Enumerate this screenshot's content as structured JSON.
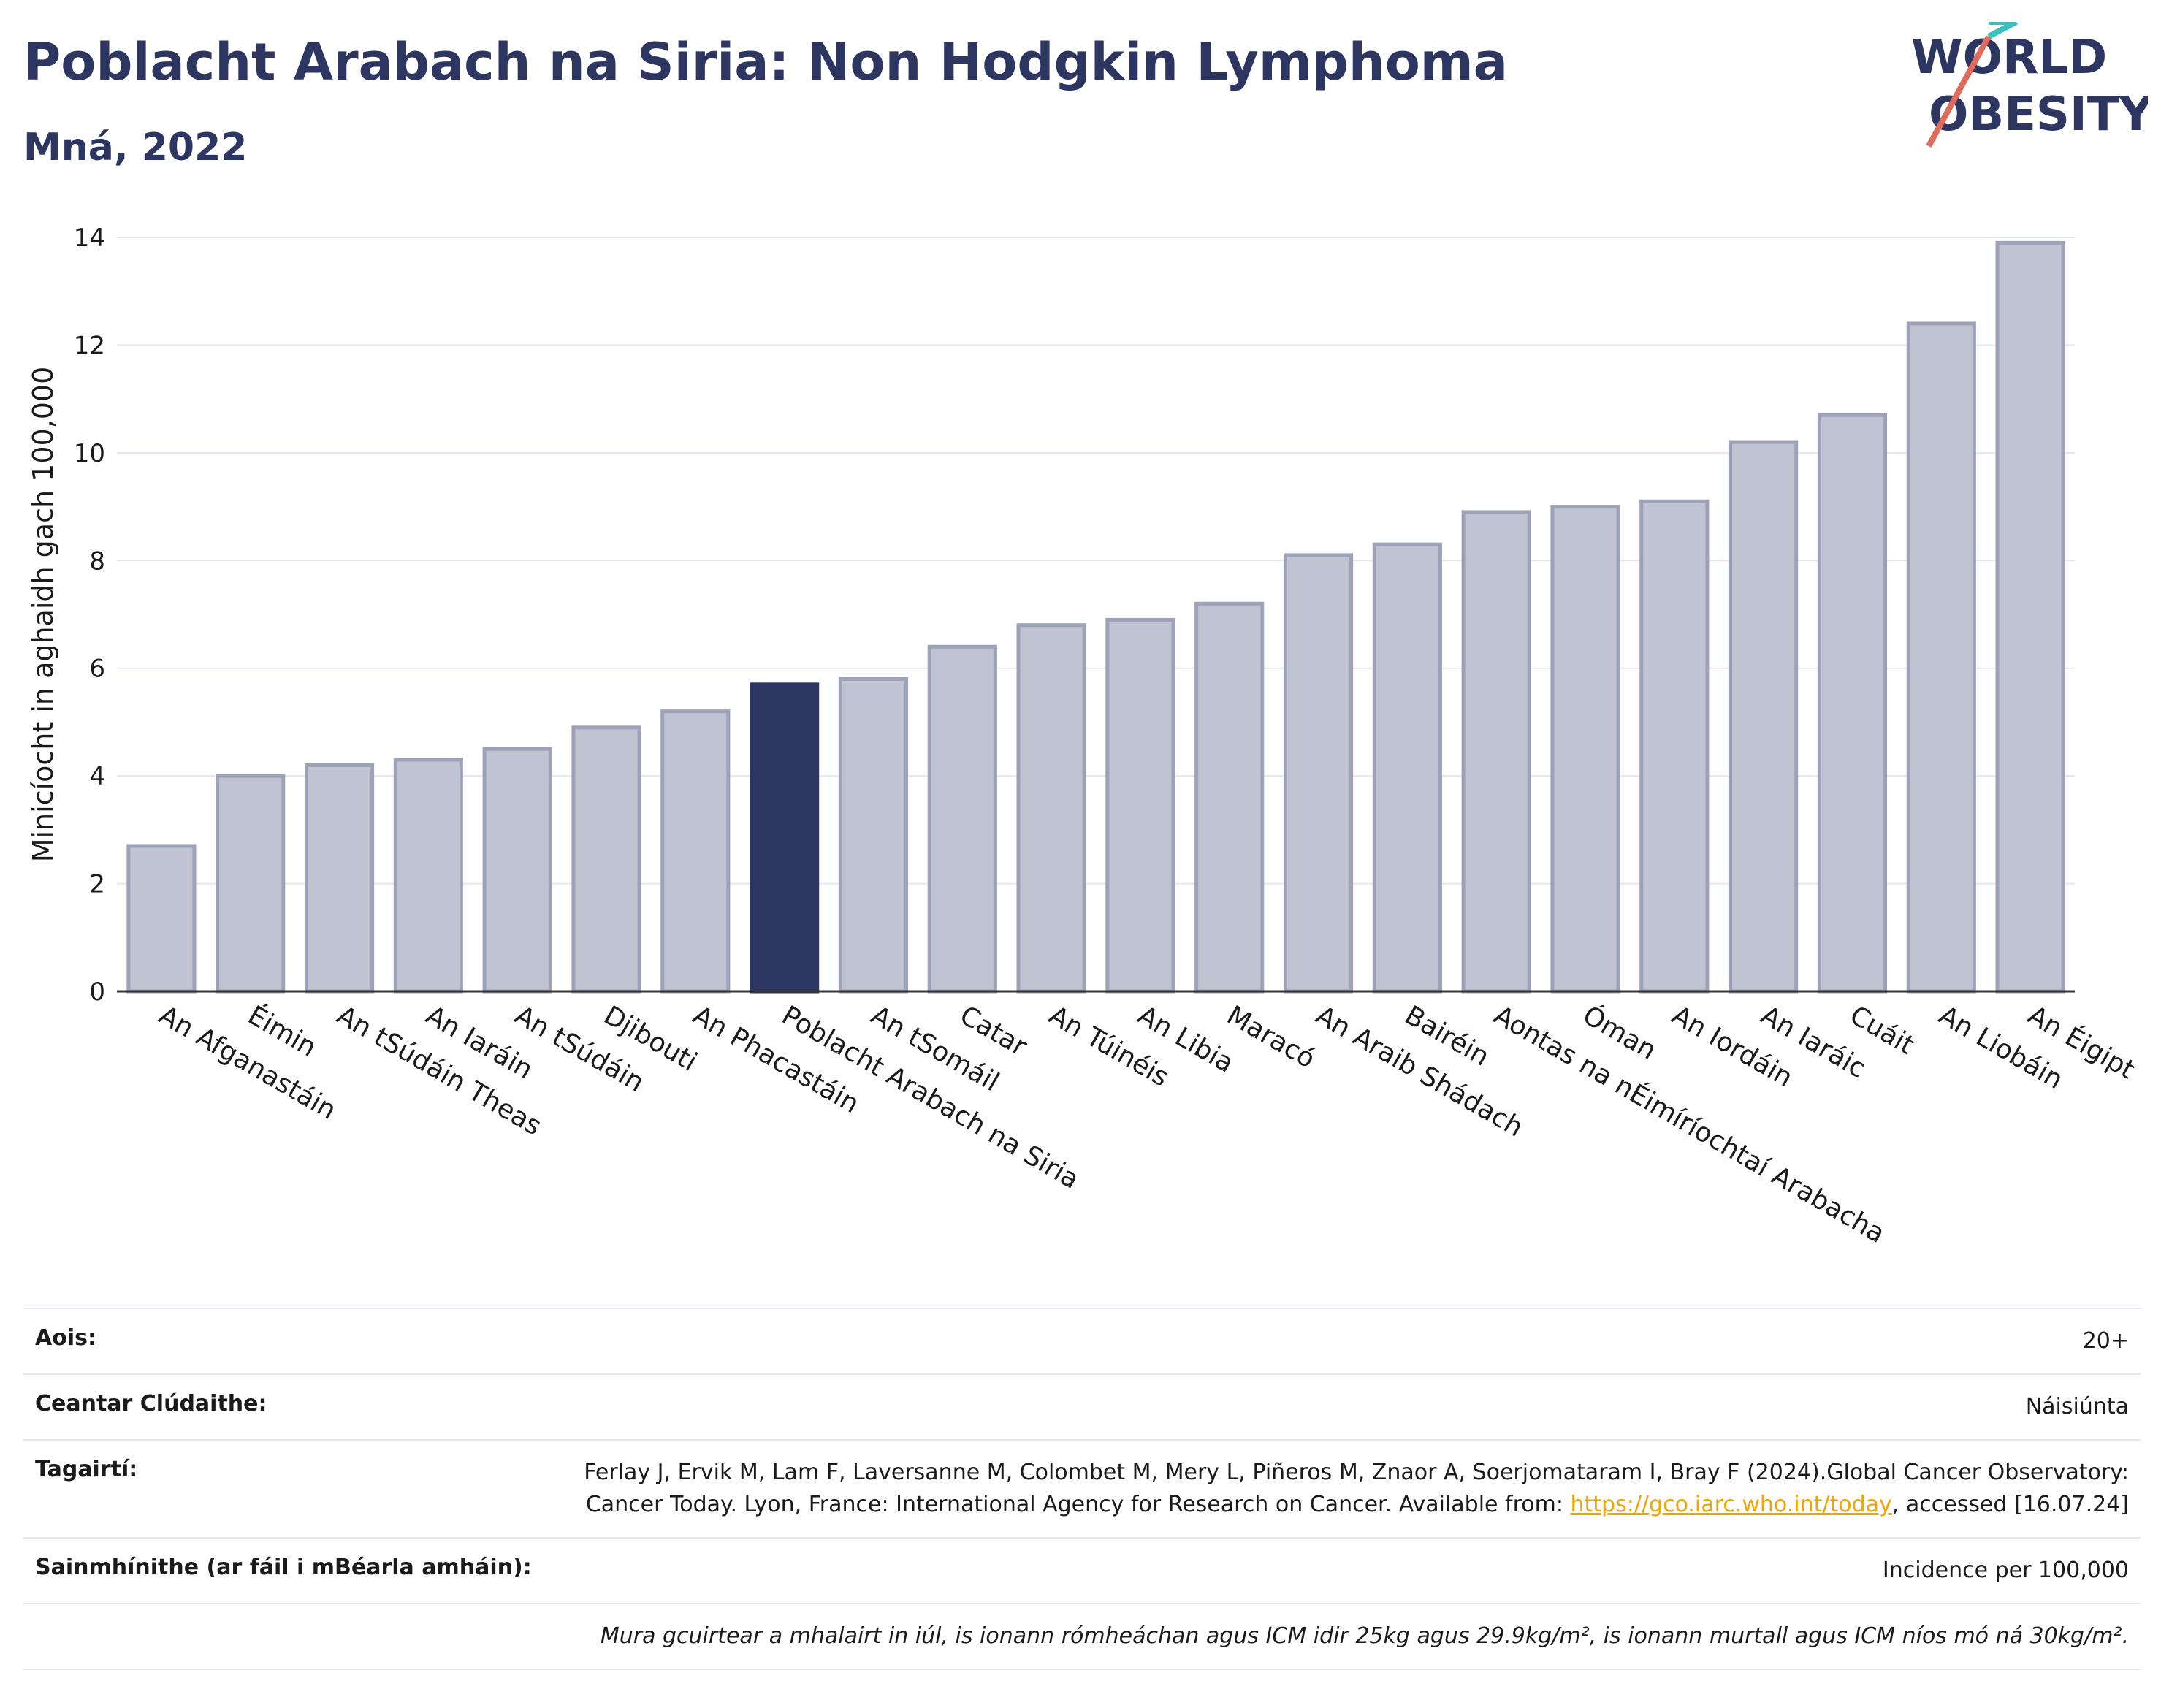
{
  "header": {
    "title": "Poblacht Arabach na Siria: Non Hodgkin Lymphoma",
    "subtitle": "Mná, 2022"
  },
  "logo": {
    "line1": "WORLD",
    "line2": "OBESITY"
  },
  "chart_data": {
    "type": "bar",
    "title": "Poblacht Arabach na Siria: Non Hodgkin Lymphoma",
    "subtitle": "Mná, 2022",
    "ylabel": "Minicíocht in aghaidh gach 100,000",
    "xlabel": "",
    "ylim": [
      0,
      14
    ],
    "yticks": [
      0,
      2,
      4,
      6,
      8,
      10,
      12,
      14
    ],
    "grid": true,
    "highlight": "Poblacht Arabach na Siria",
    "highlight_color": "#2d3561",
    "bar_color": "#c0c3d1",
    "categories": [
      "An Afganastáin",
      "Éimin",
      "An tSúdáin Theas",
      "An Iaráin",
      "An tSúdáin",
      "Djibouti",
      "An Phacastáin",
      "Poblacht Arabach na Siria",
      "An tSomáil",
      "Catar",
      "An Túinéis",
      "An Libia",
      "Maracó",
      "An Araib Shádach",
      "Bairéin",
      "Aontas na nÉimíríochtaí Arabacha",
      "Óman",
      "An Iordáin",
      "An Iaráic",
      "Cuáit",
      "An Liobáin",
      "An Éigipt"
    ],
    "values": [
      2.7,
      4.0,
      4.2,
      4.3,
      4.5,
      4.9,
      5.2,
      5.7,
      5.8,
      6.4,
      6.8,
      6.9,
      7.2,
      8.1,
      8.3,
      8.9,
      9.0,
      9.1,
      10.2,
      10.7,
      12.4,
      13.9
    ]
  },
  "info": {
    "age_label": "Aois:",
    "age_value": "20+",
    "area_label": "Ceantar Clúdaithe:",
    "area_value": "Náisiúnta",
    "ref_label": "Tagairtí:",
    "ref_text_1": "Ferlay J, Ervik M, Lam F, Laversanne M, Colombet M, Mery L, Piñeros M, Znaor A, Soerjomataram I, Bray F (2024).Global Cancer Observatory: Cancer Today. Lyon, France: International Agency for Research on Cancer. Available from: ",
    "ref_link": "https://gco.iarc.who.int/today",
    "ref_text_2": ", accessed [16.07.24]",
    "def_label": "Sainmhínithe (ar fáil i mBéarla amháin):",
    "def_value": "Incidence per 100,000",
    "note": "Mura gcuirtear a mhalairt in iúl, is ionann rómheáchan agus ICM idir 25kg agus 29.9kg/m², is ionann murtall agus ICM níos mó ná 30kg/m²."
  }
}
